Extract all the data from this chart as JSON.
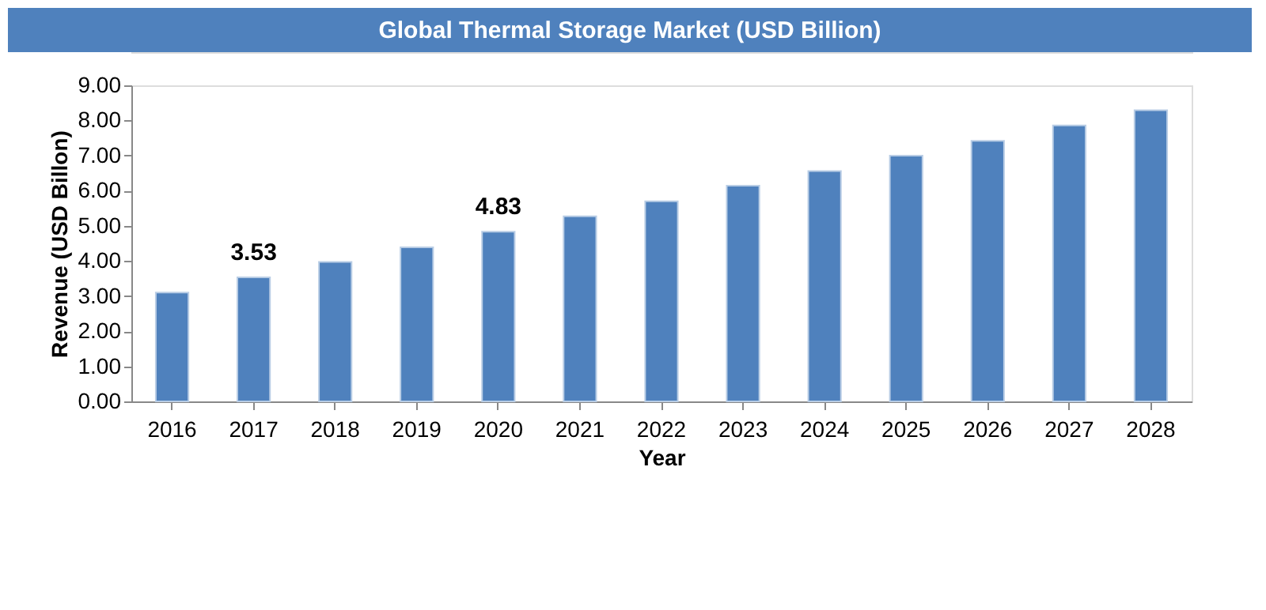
{
  "chart_data": {
    "type": "bar",
    "title": "Global Thermal Storage Market (USD Billion)",
    "xlabel": "Year",
    "ylabel": "Revenue (USD Billon)",
    "categories": [
      "2016",
      "2017",
      "2018",
      "2019",
      "2020",
      "2021",
      "2022",
      "2023",
      "2024",
      "2025",
      "2026",
      "2027",
      "2028"
    ],
    "values": [
      3.1,
      3.53,
      3.97,
      4.39,
      4.83,
      5.27,
      5.7,
      6.14,
      6.56,
      7.0,
      7.42,
      7.86,
      8.29
    ],
    "value_labels": [
      null,
      "3.53",
      null,
      null,
      "4.83",
      null,
      null,
      null,
      null,
      null,
      null,
      null,
      null
    ],
    "color": "#4f81bd",
    "ylim": [
      0,
      9
    ],
    "yticks": [
      {
        "value": 0,
        "label": "0.00"
      },
      {
        "value": 1,
        "label": "1.00"
      },
      {
        "value": 2,
        "label": "2.00"
      },
      {
        "value": 3,
        "label": "3.00"
      },
      {
        "value": 4,
        "label": "4.00"
      },
      {
        "value": 5,
        "label": "5.00"
      },
      {
        "value": 6,
        "label": "6.00"
      },
      {
        "value": 7,
        "label": "7.00"
      },
      {
        "value": 8,
        "label": "8.00"
      },
      {
        "value": 9,
        "label": "9.00"
      }
    ],
    "grid": false
  }
}
